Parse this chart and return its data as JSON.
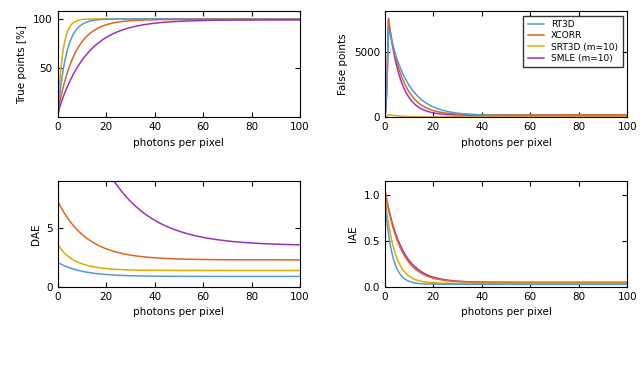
{
  "colors": {
    "RT3D": "#5599dd",
    "XCORR": "#dd6622",
    "SRT3D": "#ddaa00",
    "SMLE": "#9933bb"
  },
  "legend_labels": [
    "RT3D",
    "XCORR",
    "SRT3D (m=10)",
    "SMLE (m=10)"
  ],
  "xlabel": "photons per pixel",
  "ylabels": [
    "True points [%]",
    "False points",
    "DAE",
    "IAE"
  ],
  "xlim": [
    0,
    100
  ],
  "background": "#ffffff",
  "tp_yticks": [
    50,
    100
  ],
  "fp_yticks": [
    0,
    5000
  ],
  "dae_yticks": [
    0,
    5
  ],
  "iae_yticks": [
    0,
    0.5,
    1
  ]
}
